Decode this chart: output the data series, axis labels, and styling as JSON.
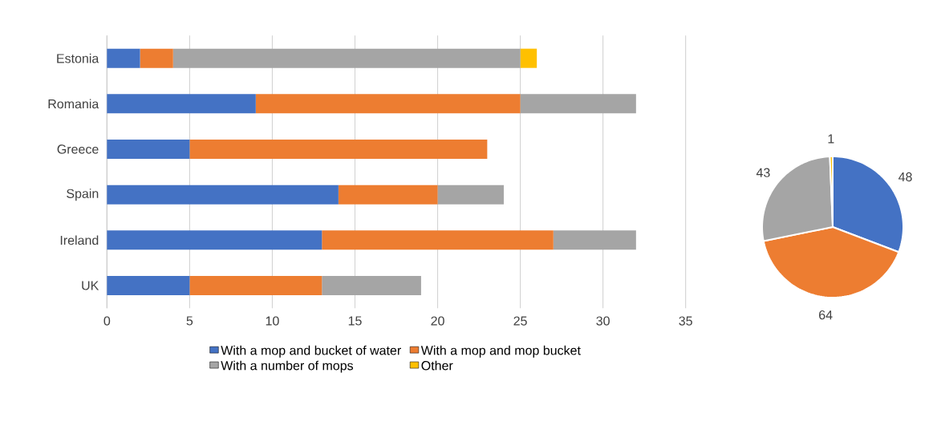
{
  "chart_data": [
    {
      "type": "bar",
      "orientation": "horizontal",
      "stacked": true,
      "categories": [
        "Estonia",
        "Romania",
        "Greece",
        "Spain",
        "Ireland",
        "UK"
      ],
      "series": [
        {
          "name": "With a mop and bucket of water",
          "color": "#4472c4",
          "values": [
            2,
            9,
            5,
            14,
            13,
            5
          ]
        },
        {
          "name": "With a mop and mop bucket",
          "color": "#ed7d31",
          "values": [
            2,
            16,
            18,
            6,
            14,
            8
          ]
        },
        {
          "name": "With a number of mops",
          "color": "#a5a5a5",
          "values": [
            21,
            7,
            0,
            4,
            5,
            6
          ]
        },
        {
          "name": "Other",
          "color": "#ffc000",
          "values": [
            1,
            0,
            0,
            0,
            0,
            0
          ]
        }
      ],
      "xlim": [
        0,
        35
      ],
      "xticks": [
        0,
        5,
        10,
        15,
        20,
        25,
        30,
        35
      ],
      "grid": "x",
      "legend": "bottom"
    },
    {
      "type": "pie",
      "categories": [
        null,
        null,
        null,
        null
      ],
      "values": [
        48,
        64,
        43,
        1
      ],
      "colors": [
        "#4472c4",
        "#ed7d31",
        "#a5a5a5",
        "#ffc000"
      ],
      "data_labels": true
    }
  ]
}
